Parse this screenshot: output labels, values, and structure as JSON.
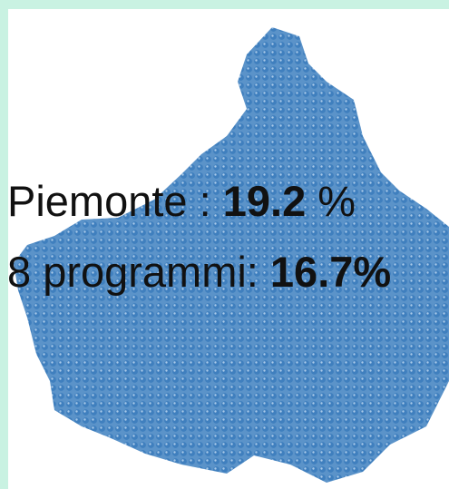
{
  "region": {
    "label": "Piemonte : ",
    "value": "19.2",
    "unit": " %"
  },
  "programs": {
    "label": "8 programmi: ",
    "value": "16.7%"
  }
}
